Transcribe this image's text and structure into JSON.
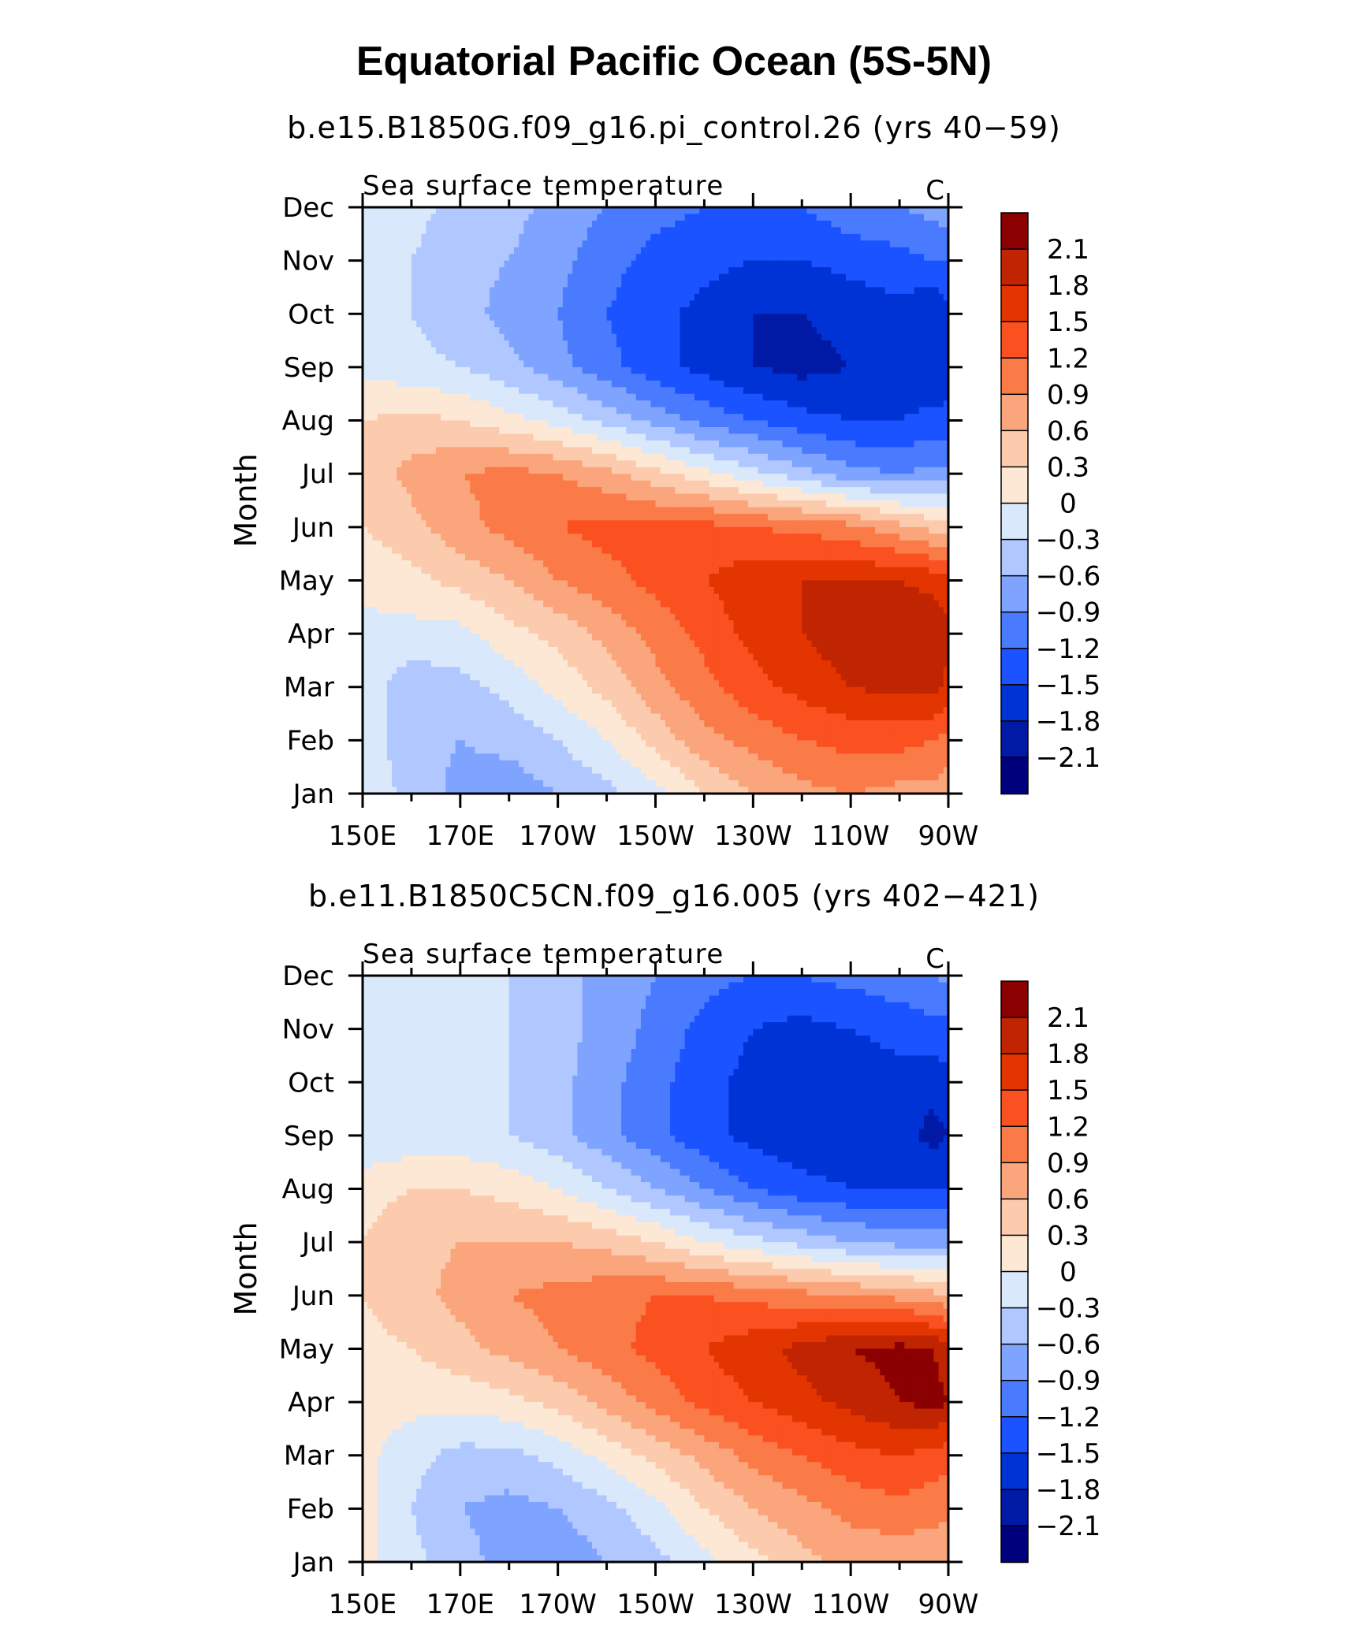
{
  "figure": {
    "title": "Equatorial Pacific Ocean (5S-5N)"
  },
  "colors": {
    "levels": [
      "#00007d",
      "#001aa6",
      "#0033d6",
      "#1a53ff",
      "#4a7bff",
      "#7fa4ff",
      "#b0c8ff",
      "#d9e8fb",
      "#fde8d6",
      "#fccbae",
      "#fba57c",
      "#fa7a48",
      "#fb5020",
      "#e33500",
      "#c02400",
      "#8b0000"
    ],
    "axis": "#000000"
  },
  "chart_data": [
    {
      "type": "heatmap",
      "subtitle": "b.e15.B1850G.f09_g16.pi_control.26 (yrs 40−59)",
      "left_label": "Sea surface temperature",
      "right_label": "C",
      "ylabel": "Month",
      "xlabel": "",
      "x_ticks": [
        "150E",
        "170E",
        "170W",
        "150W",
        "130W",
        "110W",
        "90W"
      ],
      "y_ticks": [
        "Jan",
        "Feb",
        "Mar",
        "Apr",
        "May",
        "Jun",
        "Jul",
        "Aug",
        "Sep",
        "Oct",
        "Nov",
        "Dec"
      ],
      "x_range_lon_east": [
        150,
        270
      ],
      "colorbar": {
        "labels": [
          "2.1",
          "1.8",
          "1.5",
          "1.2",
          "0.9",
          "0.6",
          "0.3",
          "0",
          "−0.3",
          "−0.6",
          "−0.9",
          "−1.2",
          "−1.5",
          "−1.8",
          "−2.1"
        ],
        "levels": [
          -2.1,
          -1.8,
          -1.5,
          -1.2,
          -0.9,
          -0.6,
          -0.3,
          0,
          0.3,
          0.6,
          0.9,
          1.2,
          1.5,
          1.8,
          2.1
        ]
      },
      "lons": [
        150,
        160,
        170,
        180,
        190,
        200,
        210,
        220,
        230,
        240,
        250,
        260,
        267,
        270
      ],
      "months": [
        "Jan",
        "Feb",
        "Mar",
        "Apr",
        "May",
        "Jun",
        "Jul",
        "Aug",
        "Sep",
        "Oct",
        "Nov",
        "Dec"
      ],
      "values": [
        [
          -0.1,
          -0.4,
          -0.7,
          -0.8,
          -0.6,
          -0.4,
          -0.1,
          0.3,
          0.6,
          0.8,
          0.9,
          0.8,
          0.8,
          0.7
        ],
        [
          -0.1,
          -0.5,
          -0.6,
          -0.5,
          -0.3,
          0.0,
          0.4,
          0.8,
          1.0,
          1.2,
          1.3,
          1.3,
          1.2,
          1.1
        ],
        [
          -0.1,
          -0.5,
          -0.4,
          -0.2,
          0.1,
          0.4,
          0.8,
          1.1,
          1.4,
          1.6,
          1.8,
          1.9,
          1.9,
          1.7
        ],
        [
          -0.1,
          -0.1,
          -0.1,
          0.2,
          0.4,
          0.7,
          1.0,
          1.3,
          1.6,
          1.8,
          2.0,
          2.1,
          2.0,
          1.9
        ],
        [
          0.1,
          0.2,
          0.4,
          0.6,
          0.9,
          1.1,
          1.3,
          1.5,
          1.7,
          1.8,
          1.8,
          1.8,
          1.7,
          1.6
        ],
        [
          0.3,
          0.5,
          0.8,
          1.0,
          1.2,
          1.3,
          1.3,
          1.3,
          1.2,
          1.1,
          1.0,
          0.7,
          0.5,
          0.4
        ],
        [
          0.4,
          0.7,
          0.9,
          1.0,
          0.9,
          0.7,
          0.4,
          0.1,
          -0.2,
          -0.5,
          -0.8,
          -0.9,
          -0.8,
          -0.8
        ],
        [
          0.3,
          0.4,
          0.3,
          0.1,
          -0.1,
          -0.4,
          -0.7,
          -1.0,
          -1.2,
          -1.4,
          -1.5,
          -1.5,
          -1.4,
          -1.4
        ],
        [
          -0.1,
          -0.2,
          -0.3,
          -0.5,
          -0.8,
          -1.1,
          -1.4,
          -1.6,
          -1.8,
          -1.9,
          -1.8,
          -1.7,
          -1.8,
          -1.7
        ],
        [
          -0.2,
          -0.3,
          -0.5,
          -0.7,
          -0.9,
          -1.2,
          -1.4,
          -1.6,
          -1.8,
          -1.8,
          -1.7,
          -1.6,
          -1.8,
          -1.6
        ],
        [
          -0.2,
          -0.3,
          -0.5,
          -0.6,
          -0.8,
          -1.1,
          -1.3,
          -1.4,
          -1.5,
          -1.5,
          -1.4,
          -1.3,
          -1.2,
          -1.2
        ],
        [
          0.0,
          -0.2,
          -0.4,
          -0.5,
          -0.7,
          -0.9,
          -1.1,
          -1.2,
          -1.2,
          -1.2,
          -1.0,
          -0.9,
          -0.8,
          -0.7
        ]
      ]
    },
    {
      "type": "heatmap",
      "subtitle": "b.e11.B1850C5CN.f09_g16.005 (yrs 402−421)",
      "left_label": "Sea surface temperature",
      "right_label": "C",
      "ylabel": "Month",
      "xlabel": "",
      "x_ticks": [
        "150E",
        "170E",
        "170W",
        "150W",
        "130W",
        "110W",
        "90W"
      ],
      "y_ticks": [
        "Jan",
        "Feb",
        "Mar",
        "Apr",
        "May",
        "Jun",
        "Jul",
        "Aug",
        "Sep",
        "Oct",
        "Nov",
        "Dec"
      ],
      "x_range_lon_east": [
        150,
        270
      ],
      "colorbar": {
        "labels": [
          "2.1",
          "1.8",
          "1.5",
          "1.2",
          "0.9",
          "0.6",
          "0.3",
          "0",
          "−0.3",
          "−0.6",
          "−0.9",
          "−1.2",
          "−1.5",
          "−1.8",
          "−2.1"
        ],
        "levels": [
          -2.1,
          -1.8,
          -1.5,
          -1.2,
          -0.9,
          -0.6,
          -0.3,
          0,
          0.3,
          0.6,
          0.9,
          1.2,
          1.5,
          1.8,
          2.1
        ]
      },
      "lons": [
        150,
        160,
        170,
        180,
        190,
        200,
        210,
        220,
        230,
        240,
        250,
        260,
        267,
        270
      ],
      "months": [
        "Jan",
        "Feb",
        "Mar",
        "Apr",
        "May",
        "Jun",
        "Jul",
        "Aug",
        "Sep",
        "Oct",
        "Nov",
        "Dec"
      ],
      "values": [
        [
          0.1,
          -0.2,
          -0.5,
          -0.7,
          -0.8,
          -0.6,
          -0.4,
          -0.1,
          0.2,
          0.5,
          0.7,
          0.7,
          0.7,
          0.6
        ],
        [
          0.1,
          -0.3,
          -0.6,
          -0.7,
          -0.6,
          -0.4,
          -0.1,
          0.3,
          0.6,
          0.8,
          1.0,
          1.1,
          1.0,
          1.0
        ],
        [
          0.1,
          -0.2,
          -0.4,
          -0.4,
          -0.2,
          0.1,
          0.4,
          0.7,
          1.0,
          1.2,
          1.4,
          1.5,
          1.4,
          1.3
        ],
        [
          0.1,
          0.1,
          0.1,
          0.2,
          0.4,
          0.7,
          1.0,
          1.3,
          1.5,
          1.7,
          1.9,
          2.1,
          2.2,
          2.1
        ],
        [
          0.2,
          0.3,
          0.5,
          0.7,
          0.9,
          1.1,
          1.3,
          1.5,
          1.7,
          1.9,
          2.1,
          2.2,
          2.1,
          1.9
        ],
        [
          0.3,
          0.5,
          0.7,
          0.9,
          1.0,
          1.1,
          1.2,
          1.2,
          1.1,
          1.0,
          0.9,
          0.8,
          0.7,
          0.6
        ],
        [
          0.3,
          0.5,
          0.6,
          0.6,
          0.6,
          0.5,
          0.3,
          0.0,
          -0.2,
          -0.4,
          -0.6,
          -0.7,
          -0.7,
          -0.7
        ],
        [
          0.2,
          0.3,
          0.3,
          0.2,
          0.0,
          -0.3,
          -0.6,
          -0.9,
          -1.2,
          -1.4,
          -1.5,
          -1.5,
          -1.5,
          -1.5
        ],
        [
          -0.3,
          -0.2,
          -0.2,
          -0.3,
          -0.5,
          -0.8,
          -1.1,
          -1.4,
          -1.6,
          -1.7,
          -1.7,
          -1.7,
          -1.9,
          -1.8
        ],
        [
          -0.3,
          -0.2,
          -0.2,
          -0.3,
          -0.5,
          -0.8,
          -1.1,
          -1.4,
          -1.6,
          -1.7,
          -1.7,
          -1.6,
          -1.7,
          -1.6
        ],
        [
          -0.1,
          -0.1,
          -0.2,
          -0.3,
          -0.5,
          -0.7,
          -1.0,
          -1.3,
          -1.5,
          -1.6,
          -1.5,
          -1.4,
          -1.3,
          -1.3
        ],
        [
          0.0,
          -0.1,
          -0.2,
          -0.3,
          -0.5,
          -0.7,
          -0.9,
          -1.1,
          -1.2,
          -1.2,
          -1.1,
          -1.0,
          -0.9,
          -0.8
        ]
      ]
    }
  ]
}
